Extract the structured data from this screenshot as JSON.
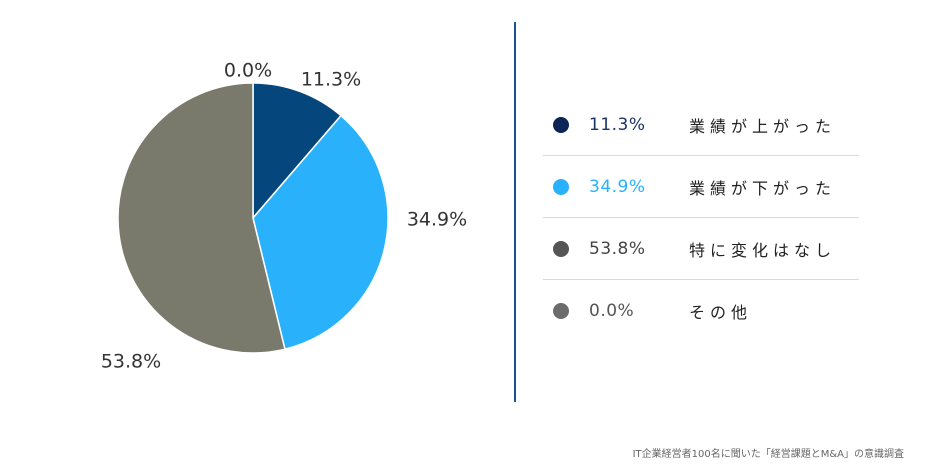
{
  "chart_data": {
    "type": "pie",
    "categories": [
      "業績が上がった",
      "業績が下がった",
      "特に変化はなし",
      "その他"
    ],
    "values": [
      11.3,
      34.9,
      53.8,
      0.0
    ],
    "value_labels": [
      "11.3%",
      "34.9%",
      "53.8%",
      "0.0%"
    ],
    "colors": [
      "#05467d",
      "#29b2fb",
      "#7a7a6c",
      "#777777"
    ],
    "legend_value_colors": [
      "#1b3466",
      "#29b2fb",
      "#444444",
      "#555555"
    ],
    "legend_dot_colors": [
      "#0c2556",
      "#29b2fb",
      "#555555",
      "#6c6c6c"
    ],
    "label_color": "#333333",
    "legend_placement": "right"
  },
  "legend": {
    "items": [
      {
        "value": "11.3%",
        "label": "業績が上がった"
      },
      {
        "value": "34.9%",
        "label": "業績が下がった"
      },
      {
        "value": "53.8%",
        "label": "特に変化はなし"
      },
      {
        "value": "0.0%",
        "label": "その他"
      }
    ]
  },
  "source_note": "IT企業経営者100名に聞いた「経営課題とM&A」の意識調査"
}
